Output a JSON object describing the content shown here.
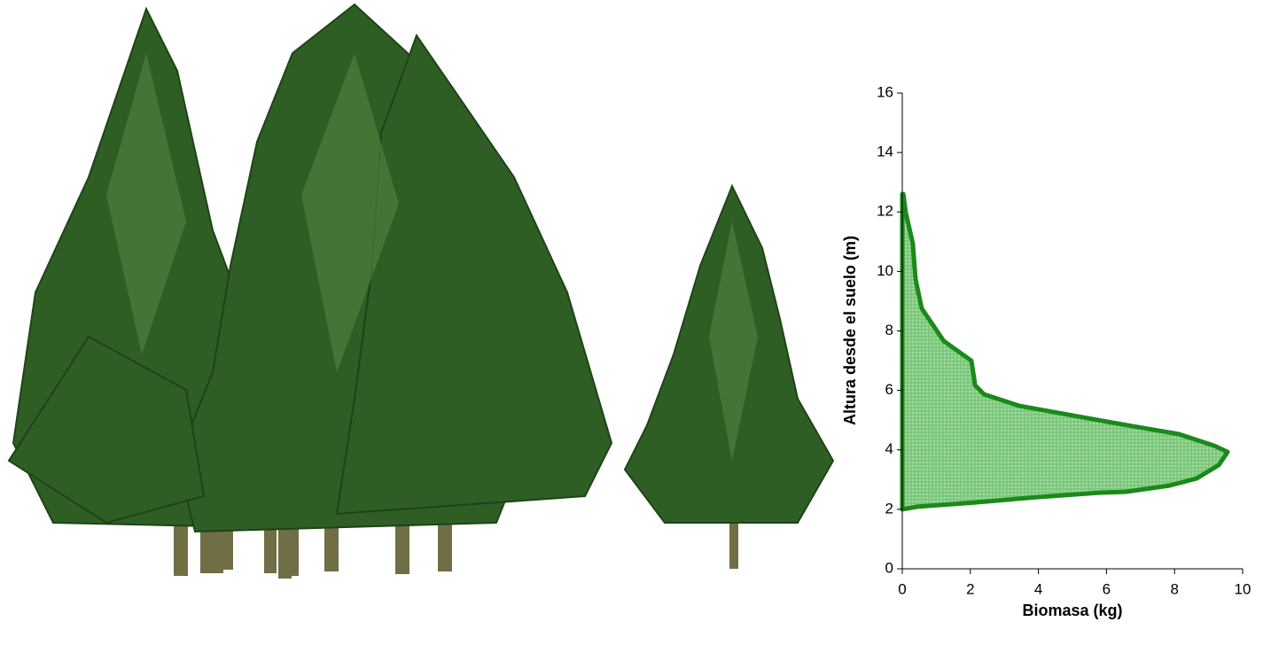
{
  "chart_data": {
    "type": "area",
    "xlabel": "Biomasa (kg)",
    "ylabel": "Altura desde el suelo (m)",
    "x": [
      0,
      0.44,
      2.1,
      3.96,
      5.78,
      6.56,
      7.86,
      8.65,
      9.3,
      9.56,
      9.17,
      8.13,
      6.3,
      4.74,
      3.44,
      2.4,
      2.14,
      2.03,
      1.22,
      0.57,
      0.39,
      0.31,
      0.1,
      0.03,
      0
    ],
    "values": [
      2.0,
      2.09,
      2.23,
      2.41,
      2.56,
      2.59,
      2.8,
      3.04,
      3.49,
      3.93,
      4.14,
      4.53,
      4.89,
      5.21,
      5.48,
      5.87,
      6.17,
      7.0,
      7.66,
      8.76,
      9.74,
      10.94,
      12.0,
      12.6,
      12.6
    ],
    "color": "#1a8a1a",
    "xlim": [
      0,
      10
    ],
    "xticks": [
      0,
      2,
      4,
      6,
      8,
      10
    ],
    "ylim": [
      0,
      16
    ],
    "yticks": [
      0,
      2,
      4,
      6,
      8,
      10,
      12,
      14,
      16
    ]
  }
}
